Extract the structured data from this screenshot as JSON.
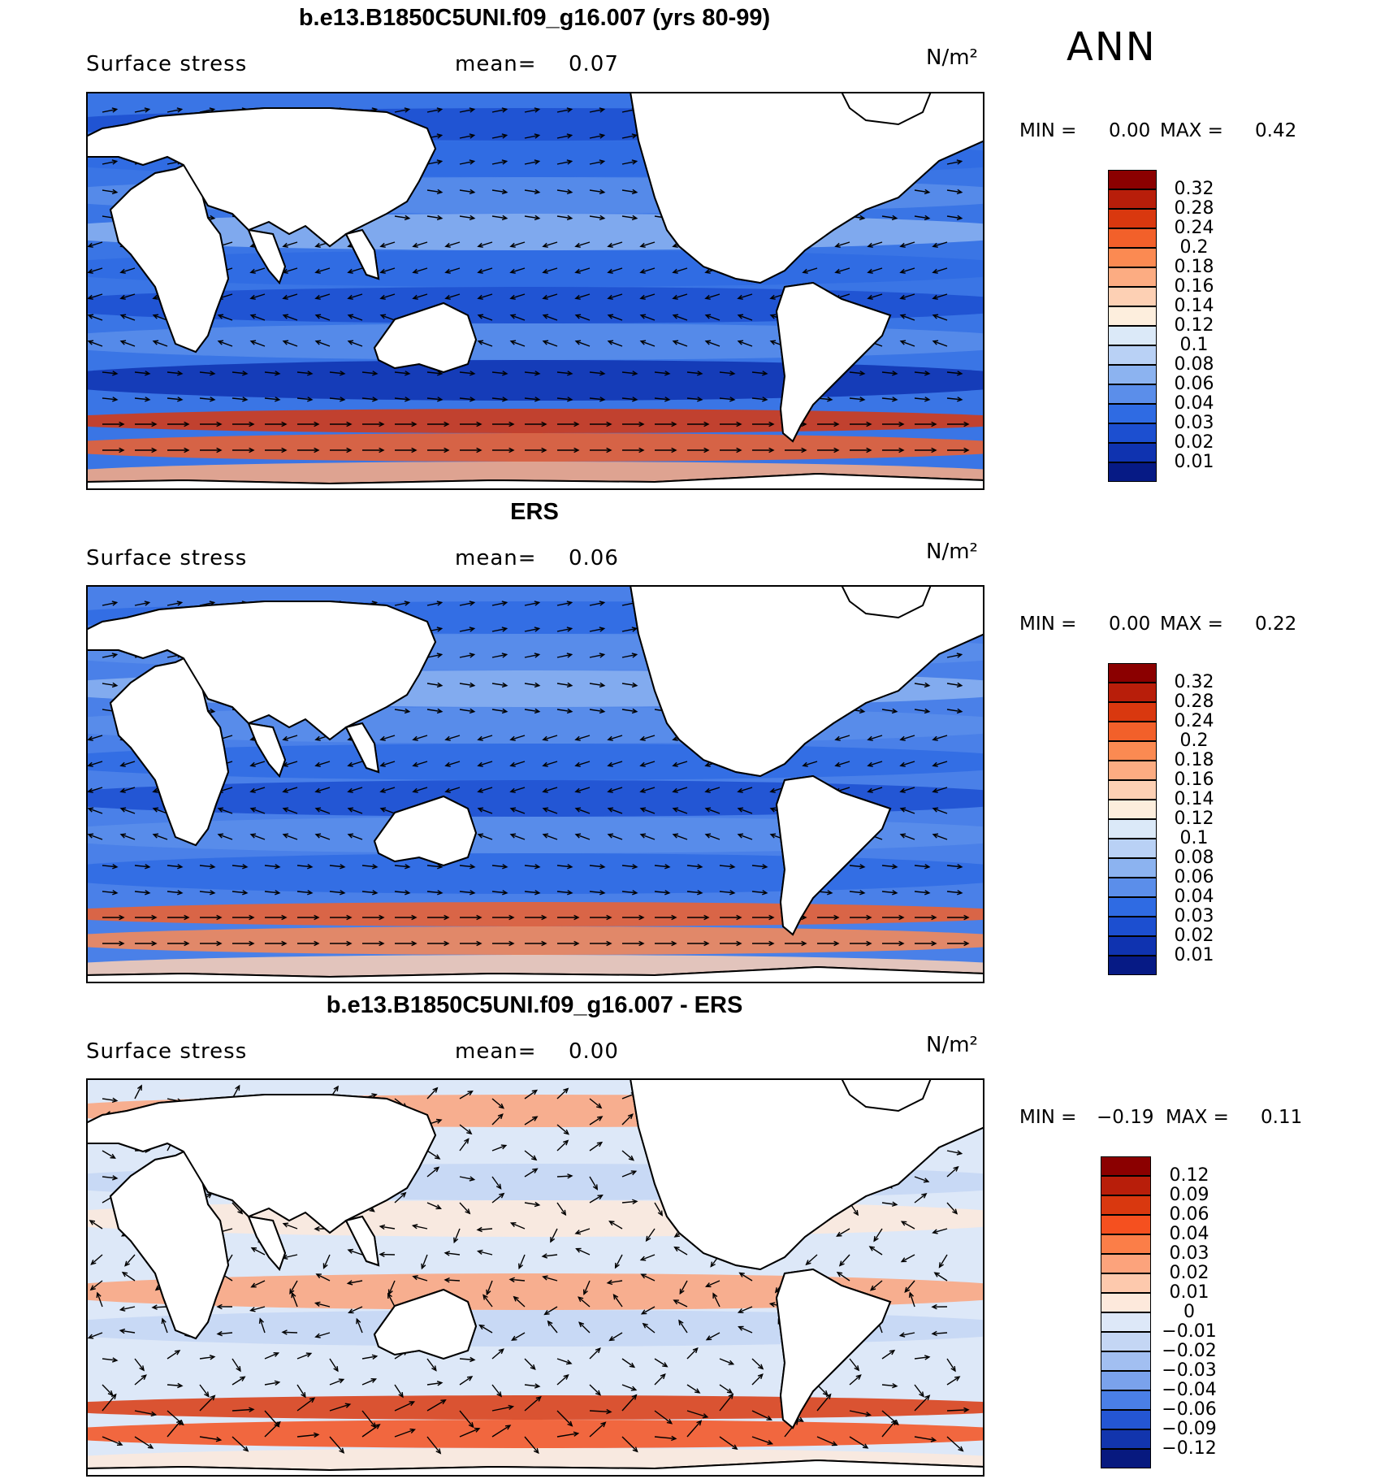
{
  "header": {
    "season": "ANN"
  },
  "panels": [
    {
      "title": "b.e13.B1850C5UNI.f09_g16.007 (yrs 80-99)",
      "variable": "Surface stress",
      "mean_label": "mean=",
      "mean_value": "0.07",
      "units": "N/m²",
      "min_label": "MIN =",
      "min_value": "0.00",
      "max_label": "MAX =",
      "max_value": "0.42"
    },
    {
      "title": "ERS",
      "variable": "Surface stress",
      "mean_label": "mean=",
      "mean_value": "0.06",
      "units": "N/m²",
      "min_label": "MIN =",
      "min_value": "0.00",
      "max_label": "MAX =",
      "max_value": "0.22"
    },
    {
      "title": "b.e13.B1850C5UNI.f09_g16.007 - ERS",
      "variable": "Surface stress",
      "mean_label": "mean=",
      "mean_value": "0.00",
      "units": "N/m²",
      "min_label": "MIN =",
      "min_value": "−0.19",
      "max_label": "MAX =",
      "max_value": "0.11"
    }
  ],
  "chart_data": [
    {
      "type": "heatmap",
      "title": "b.e13.B1850C5UNI.f09_g16.007 (yrs 80-99)",
      "variable": "Surface stress",
      "units": "N/m²",
      "mean": 0.07,
      "min": 0.0,
      "max": 0.42,
      "colorbar": {
        "levels": [
          "0.32",
          "0.28",
          "0.24",
          "0.2",
          "0.18",
          "0.16",
          "0.14",
          "0.12",
          "0.1",
          "0.08",
          "0.06",
          "0.04",
          "0.03",
          "0.02",
          "0.01"
        ],
        "colors": [
          "#8b0000",
          "#b81e0a",
          "#d9380f",
          "#f2602a",
          "#fb8a52",
          "#fcac82",
          "#fdd0b4",
          "#fdeedd",
          "#dbe9f8",
          "#b9d1f5",
          "#8cb3f0",
          "#5b8eea",
          "#2f6be3",
          "#1c4fd0",
          "#0f33b0",
          "#061a85"
        ]
      }
    },
    {
      "type": "heatmap",
      "title": "ERS",
      "variable": "Surface stress",
      "units": "N/m²",
      "mean": 0.06,
      "min": 0.0,
      "max": 0.22,
      "colorbar": {
        "levels": [
          "0.32",
          "0.28",
          "0.24",
          "0.2",
          "0.18",
          "0.16",
          "0.14",
          "0.12",
          "0.1",
          "0.08",
          "0.06",
          "0.04",
          "0.03",
          "0.02",
          "0.01"
        ],
        "colors": [
          "#8b0000",
          "#b81e0a",
          "#d9380f",
          "#f2602a",
          "#fb8a52",
          "#fcac82",
          "#fdd0b4",
          "#fdeedd",
          "#dbe9f8",
          "#b9d1f5",
          "#8cb3f0",
          "#5b8eea",
          "#2f6be3",
          "#1c4fd0",
          "#0f33b0",
          "#061a85"
        ]
      }
    },
    {
      "type": "heatmap",
      "title": "b.e13.B1850C5UNI.f09_g16.007 - ERS",
      "variable": "Surface stress",
      "units": "N/m²",
      "mean": 0.0,
      "min": -0.19,
      "max": 0.11,
      "colorbar": {
        "levels": [
          "0.12",
          "0.09",
          "0.06",
          "0.04",
          "0.03",
          "0.02",
          "0.01",
          "0",
          "−0.01",
          "−0.02",
          "−0.03",
          "−0.04",
          "−0.06",
          "−0.09",
          "−0.12"
        ],
        "colors": [
          "#8b0000",
          "#b81e0a",
          "#d9380f",
          "#f5501f",
          "#fb7e48",
          "#fca37c",
          "#fdc9ad",
          "#fde9dc",
          "#dde8f8",
          "#c4d6f4",
          "#a2bff1",
          "#7aa2ec",
          "#4a7fe6",
          "#2456d3",
          "#1235ad",
          "#07197f"
        ]
      }
    }
  ]
}
